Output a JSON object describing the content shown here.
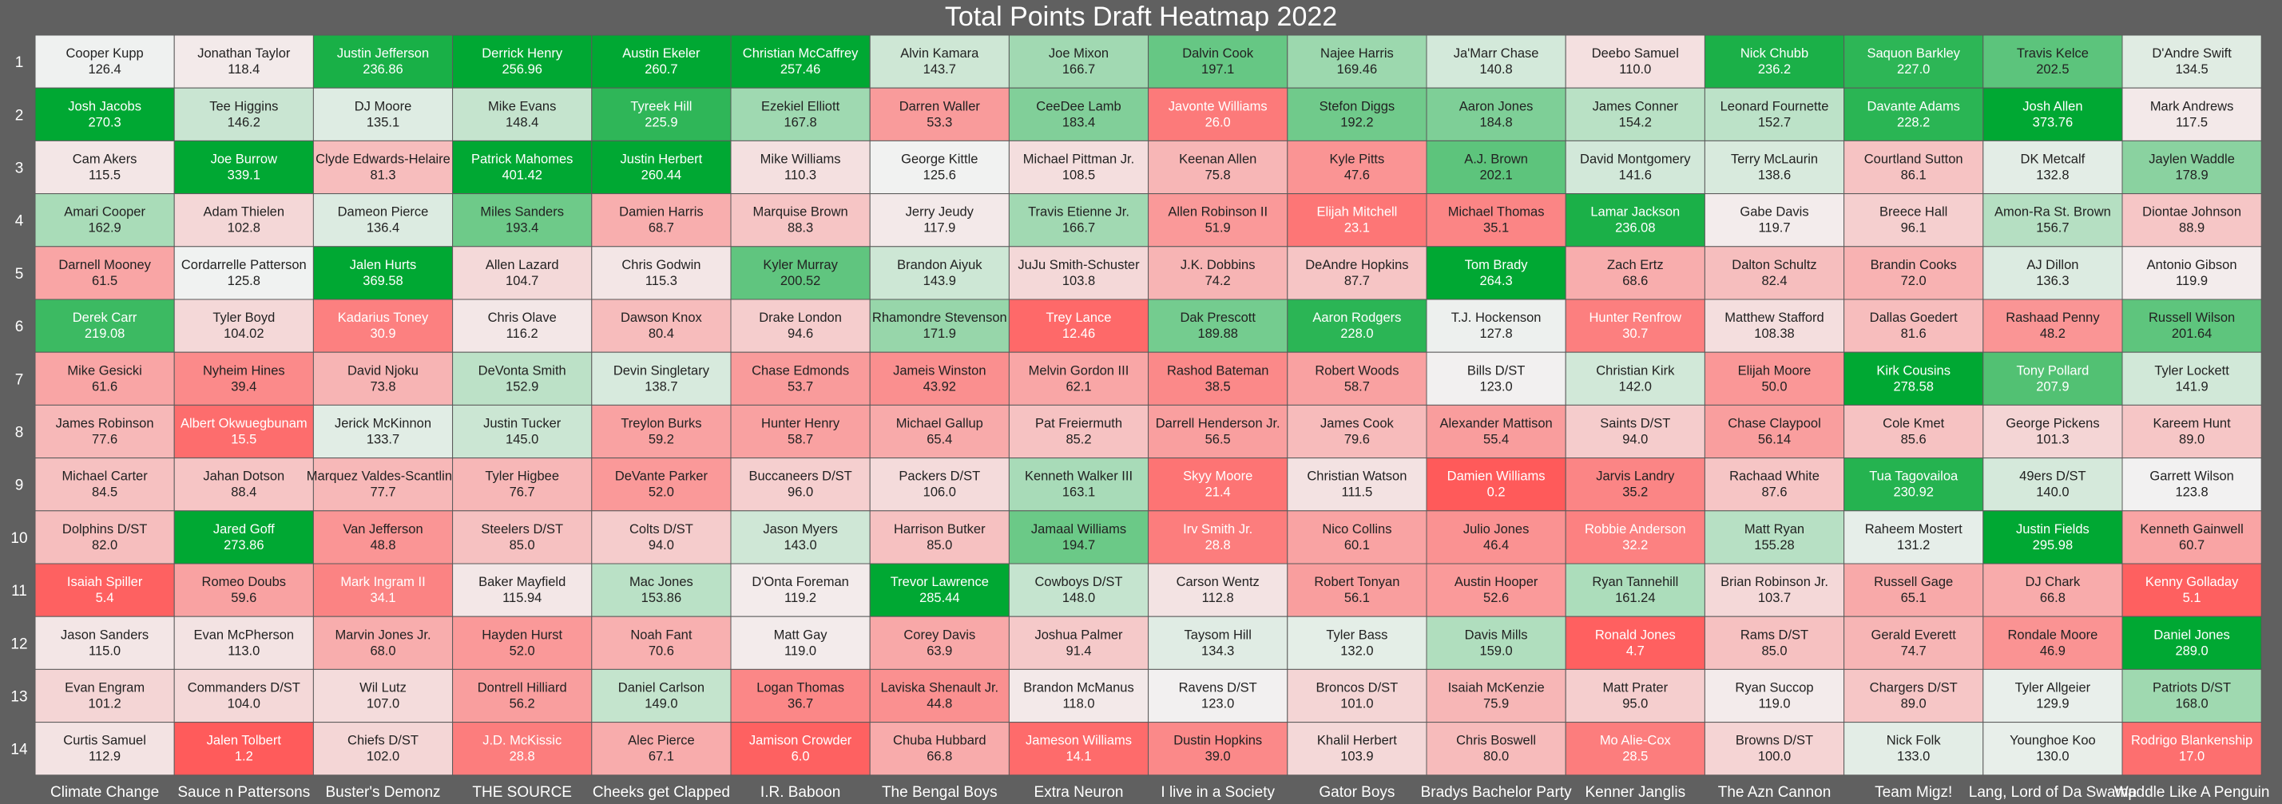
{
  "chart_data": {
    "type": "heatmap",
    "title": "Total Points Draft Heatmap 2022",
    "rounds": [
      "1",
      "2",
      "3",
      "4",
      "5",
      "6",
      "7",
      "8",
      "9",
      "10",
      "11",
      "12",
      "13",
      "14"
    ],
    "teams": [
      "Climate Change",
      "Sauce n Pattersons",
      "Buster's Demonz",
      "THE SOURCE",
      "Cheeks get  Clapped",
      "I.R. Baboon",
      "The Bengal  Boys",
      "Extra  Neuron",
      "I live in a Society",
      "Gator  Boys",
      "Bradys Bachelor Party",
      "Kenner Janglis",
      "The Azn Cannon",
      "Team Migz!",
      "Lang, Lord of Da Swamp",
      "Waddle Like A Penguin"
    ],
    "colors": {
      "low": "#ff5a5a",
      "mid": "#f2f2f2",
      "high": "#00a833",
      "background": "#606060"
    },
    "color_range": [
      0,
      250
    ],
    "cells": [
      [
        [
          "Cooper Kupp",
          "126.4"
        ],
        [
          "Jonathan Taylor",
          "118.4"
        ],
        [
          "Justin Jefferson",
          "236.86"
        ],
        [
          "Derrick Henry",
          "256.96"
        ],
        [
          "Austin Ekeler",
          "260.7"
        ],
        [
          "Christian McCaffrey",
          "257.46"
        ],
        [
          "Alvin Kamara",
          "143.7"
        ],
        [
          "Joe Mixon",
          "166.7"
        ],
        [
          "Dalvin Cook",
          "197.1"
        ],
        [
          "Najee Harris",
          "169.46"
        ],
        [
          "Ja'Marr Chase",
          "140.8"
        ],
        [
          "Deebo Samuel",
          "110.0"
        ],
        [
          "Nick Chubb",
          "236.2"
        ],
        [
          "Saquon Barkley",
          "227.0"
        ],
        [
          "Travis Kelce",
          "202.5"
        ],
        [
          "D'Andre Swift",
          "134.5"
        ]
      ],
      [
        [
          "Josh Jacobs",
          "270.3"
        ],
        [
          "Tee Higgins",
          "146.2"
        ],
        [
          "DJ Moore",
          "135.1"
        ],
        [
          "Mike Evans",
          "148.4"
        ],
        [
          "Tyreek Hill",
          "225.9"
        ],
        [
          "Ezekiel Elliott",
          "167.8"
        ],
        [
          "Darren Waller",
          "53.3"
        ],
        [
          "CeeDee Lamb",
          "183.4"
        ],
        [
          "Javonte Williams",
          "26.0"
        ],
        [
          "Stefon Diggs",
          "192.2"
        ],
        [
          "Aaron Jones",
          "184.8"
        ],
        [
          "James Conner",
          "154.2"
        ],
        [
          "Leonard Fournette",
          "152.7"
        ],
        [
          "Davante Adams",
          "228.2"
        ],
        [
          "Josh Allen",
          "373.76"
        ],
        [
          "Mark Andrews",
          "117.5"
        ]
      ],
      [
        [
          "Cam Akers",
          "115.5"
        ],
        [
          "Joe Burrow",
          "339.1"
        ],
        [
          "Clyde Edwards-Helaire",
          "81.3"
        ],
        [
          "Patrick Mahomes",
          "401.42"
        ],
        [
          "Justin Herbert",
          "260.44"
        ],
        [
          "Mike Williams",
          "110.3"
        ],
        [
          "George Kittle",
          "125.6"
        ],
        [
          "Michael Pittman Jr.",
          "108.5"
        ],
        [
          "Keenan Allen",
          "75.8"
        ],
        [
          "Kyle Pitts",
          "47.6"
        ],
        [
          "A.J. Brown",
          "202.1"
        ],
        [
          "David Montgomery",
          "141.6"
        ],
        [
          "Terry McLaurin",
          "138.6"
        ],
        [
          "Courtland Sutton",
          "86.1"
        ],
        [
          "DK Metcalf",
          "132.8"
        ],
        [
          "Jaylen Waddle",
          "178.9"
        ]
      ],
      [
        [
          "Amari Cooper",
          "162.9"
        ],
        [
          "Adam Thielen",
          "102.8"
        ],
        [
          "Dameon Pierce",
          "136.4"
        ],
        [
          "Miles Sanders",
          "193.4"
        ],
        [
          "Damien Harris",
          "68.7"
        ],
        [
          "Marquise Brown",
          "88.3"
        ],
        [
          "Jerry Jeudy",
          "117.9"
        ],
        [
          "Travis Etienne Jr.",
          "166.7"
        ],
        [
          "Allen Robinson II",
          "51.9"
        ],
        [
          "Elijah Mitchell",
          "23.1"
        ],
        [
          "Michael Thomas",
          "35.1"
        ],
        [
          "Lamar Jackson",
          "236.08"
        ],
        [
          "Gabe Davis",
          "119.7"
        ],
        [
          "Breece Hall",
          "96.1"
        ],
        [
          "Amon-Ra St. Brown",
          "156.7"
        ],
        [
          "Diontae Johnson",
          "88.9"
        ]
      ],
      [
        [
          "Darnell Mooney",
          "61.5"
        ],
        [
          "Cordarrelle Patterson",
          "125.8"
        ],
        [
          "Jalen Hurts",
          "369.58"
        ],
        [
          "Allen Lazard",
          "104.7"
        ],
        [
          "Chris Godwin",
          "115.3"
        ],
        [
          "Kyler Murray",
          "200.52"
        ],
        [
          "Brandon Aiyuk",
          "143.9"
        ],
        [
          "JuJu Smith-Schuster",
          "103.8"
        ],
        [
          "J.K. Dobbins",
          "74.2"
        ],
        [
          "DeAndre Hopkins",
          "87.7"
        ],
        [
          "Tom Brady",
          "264.3"
        ],
        [
          "Zach Ertz",
          "68.6"
        ],
        [
          "Dalton Schultz",
          "82.4"
        ],
        [
          "Brandin Cooks",
          "72.0"
        ],
        [
          "AJ Dillon",
          "136.3"
        ],
        [
          "Antonio Gibson",
          "119.9"
        ]
      ],
      [
        [
          "Derek Carr",
          "219.08"
        ],
        [
          "Tyler Boyd",
          "104.02"
        ],
        [
          "Kadarius Toney",
          "30.9"
        ],
        [
          "Chris Olave",
          "116.2"
        ],
        [
          "Dawson Knox",
          "80.4"
        ],
        [
          "Drake London",
          "94.6"
        ],
        [
          "Rhamondre Stevenson",
          "171.9"
        ],
        [
          "Trey Lance",
          "12.46"
        ],
        [
          "Dak Prescott",
          "189.88"
        ],
        [
          "Aaron Rodgers",
          "228.0"
        ],
        [
          "T.J. Hockenson",
          "127.8"
        ],
        [
          "Hunter Renfrow",
          "30.7"
        ],
        [
          "Matthew Stafford",
          "108.38"
        ],
        [
          "Dallas Goedert",
          "81.6"
        ],
        [
          "Rashaad Penny",
          "48.2"
        ],
        [
          "Russell Wilson",
          "201.64"
        ]
      ],
      [
        [
          "Mike Gesicki",
          "61.6"
        ],
        [
          "Nyheim Hines",
          "39.4"
        ],
        [
          "David Njoku",
          "73.8"
        ],
        [
          "DeVonta Smith",
          "152.9"
        ],
        [
          "Devin Singletary",
          "138.7"
        ],
        [
          "Chase Edmonds",
          "53.7"
        ],
        [
          "Jameis Winston",
          "43.92"
        ],
        [
          "Melvin Gordon III",
          "62.1"
        ],
        [
          "Rashod Bateman",
          "38.5"
        ],
        [
          "Robert Woods",
          "58.7"
        ],
        [
          "Bills D/ST",
          "123.0"
        ],
        [
          "Christian Kirk",
          "142.0"
        ],
        [
          "Elijah Moore",
          "50.0"
        ],
        [
          "Kirk Cousins",
          "278.58"
        ],
        [
          "Tony Pollard",
          "207.9"
        ],
        [
          "Tyler Lockett",
          "141.9"
        ]
      ],
      [
        [
          "James Robinson",
          "77.6"
        ],
        [
          "Albert Okwuegbunam",
          "15.5"
        ],
        [
          "Jerick McKinnon",
          "133.7"
        ],
        [
          "Justin Tucker",
          "145.0"
        ],
        [
          "Treylon Burks",
          "59.2"
        ],
        [
          "Hunter Henry",
          "58.7"
        ],
        [
          "Michael Gallup",
          "65.4"
        ],
        [
          "Pat Freiermuth",
          "85.2"
        ],
        [
          "Darrell Henderson Jr.",
          "56.5"
        ],
        [
          "James Cook",
          "79.6"
        ],
        [
          "Alexander Mattison",
          "55.4"
        ],
        [
          "Saints D/ST",
          "94.0"
        ],
        [
          "Chase Claypool",
          "56.14"
        ],
        [
          "Cole Kmet",
          "85.6"
        ],
        [
          "George Pickens",
          "101.3"
        ],
        [
          "Kareem Hunt",
          "89.0"
        ]
      ],
      [
        [
          "Michael Carter",
          "84.5"
        ],
        [
          "Jahan Dotson",
          "88.4"
        ],
        [
          "Marquez Valdes-Scantling",
          "77.7"
        ],
        [
          "Tyler Higbee",
          "76.7"
        ],
        [
          "DeVante Parker",
          "52.0"
        ],
        [
          "Buccaneers D/ST",
          "96.0"
        ],
        [
          "Packers D/ST",
          "106.0"
        ],
        [
          "Kenneth Walker III",
          "163.1"
        ],
        [
          "Skyy Moore",
          "21.4"
        ],
        [
          "Christian Watson",
          "111.5"
        ],
        [
          "Damien Williams",
          "0.2"
        ],
        [
          "Jarvis Landry",
          "35.2"
        ],
        [
          "Rachaad White",
          "87.6"
        ],
        [
          "Tua Tagovailoa",
          "230.92"
        ],
        [
          "49ers D/ST",
          "140.0"
        ],
        [
          "Garrett Wilson",
          "123.8"
        ]
      ],
      [
        [
          "Dolphins D/ST",
          "82.0"
        ],
        [
          "Jared Goff",
          "273.86"
        ],
        [
          "Van Jefferson",
          "48.8"
        ],
        [
          "Steelers D/ST",
          "85.0"
        ],
        [
          "Colts D/ST",
          "94.0"
        ],
        [
          "Jason Myers",
          "143.0"
        ],
        [
          "Harrison Butker",
          "85.0"
        ],
        [
          "Jamaal Williams",
          "194.7"
        ],
        [
          "Irv Smith Jr.",
          "28.8"
        ],
        [
          "Nico Collins",
          "60.1"
        ],
        [
          "Julio Jones",
          "46.4"
        ],
        [
          "Robbie Anderson",
          "32.2"
        ],
        [
          "Matt Ryan",
          "155.28"
        ],
        [
          "Raheem Mostert",
          "131.2"
        ],
        [
          "Justin Fields",
          "295.98"
        ],
        [
          "Kenneth Gainwell",
          "60.7"
        ]
      ],
      [
        [
          "Isaiah Spiller",
          "5.4"
        ],
        [
          "Romeo Doubs",
          "59.6"
        ],
        [
          "Mark Ingram II",
          "34.1"
        ],
        [
          "Baker Mayfield",
          "115.94"
        ],
        [
          "Mac Jones",
          "153.86"
        ],
        [
          "D'Onta Foreman",
          "119.2"
        ],
        [
          "Trevor Lawrence",
          "285.44"
        ],
        [
          "Cowboys D/ST",
          "148.0"
        ],
        [
          "Carson Wentz",
          "112.8"
        ],
        [
          "Robert Tonyan",
          "56.1"
        ],
        [
          "Austin Hooper",
          "52.6"
        ],
        [
          "Ryan Tannehill",
          "161.24"
        ],
        [
          "Brian Robinson Jr.",
          "103.7"
        ],
        [
          "Russell Gage",
          "65.1"
        ],
        [
          "DJ Chark",
          "66.8"
        ],
        [
          "Kenny Golladay",
          "5.1"
        ]
      ],
      [
        [
          "Jason Sanders",
          "115.0"
        ],
        [
          "Evan McPherson",
          "113.0"
        ],
        [
          "Marvin Jones Jr.",
          "68.0"
        ],
        [
          "Hayden Hurst",
          "52.0"
        ],
        [
          "Noah Fant",
          "70.6"
        ],
        [
          "Matt Gay",
          "119.0"
        ],
        [
          "Corey Davis",
          "63.9"
        ],
        [
          "Joshua Palmer",
          "91.4"
        ],
        [
          "Taysom Hill",
          "134.3"
        ],
        [
          "Tyler Bass",
          "132.0"
        ],
        [
          "Davis Mills",
          "159.0"
        ],
        [
          "Ronald Jones",
          "4.7"
        ],
        [
          "Rams D/ST",
          "85.0"
        ],
        [
          "Gerald Everett",
          "74.7"
        ],
        [
          "Rondale Moore",
          "46.9"
        ],
        [
          "Daniel Jones",
          "289.0"
        ]
      ],
      [
        [
          "Evan Engram",
          "101.2"
        ],
        [
          "Commanders D/ST",
          "104.0"
        ],
        [
          "Wil Lutz",
          "107.0"
        ],
        [
          "Dontrell Hilliard",
          "56.2"
        ],
        [
          "Daniel Carlson",
          "149.0"
        ],
        [
          "Logan Thomas",
          "36.7"
        ],
        [
          "Laviska Shenault Jr.",
          "44.8"
        ],
        [
          "Brandon McManus",
          "118.0"
        ],
        [
          "Ravens D/ST",
          "123.0"
        ],
        [
          "Broncos D/ST",
          "101.0"
        ],
        [
          "Isaiah McKenzie",
          "75.9"
        ],
        [
          "Matt Prater",
          "95.0"
        ],
        [
          "Ryan Succop",
          "119.0"
        ],
        [
          "Chargers D/ST",
          "89.0"
        ],
        [
          "Tyler Allgeier",
          "129.9"
        ],
        [
          "Patriots D/ST",
          "168.0"
        ]
      ],
      [
        [
          "Curtis Samuel",
          "112.9"
        ],
        [
          "Jalen Tolbert",
          "1.2"
        ],
        [
          "Chiefs D/ST",
          "102.0"
        ],
        [
          "J.D. McKissic",
          "28.8"
        ],
        [
          "Alec Pierce",
          "67.1"
        ],
        [
          "Jamison Crowder",
          "6.0"
        ],
        [
          "Chuba Hubbard",
          "66.8"
        ],
        [
          "Jameson Williams",
          "14.1"
        ],
        [
          "Dustin Hopkins",
          "39.0"
        ],
        [
          "Khalil Herbert",
          "103.9"
        ],
        [
          "Chris Boswell",
          "80.0"
        ],
        [
          "Mo Alie-Cox",
          "28.5"
        ],
        [
          "Browns D/ST",
          "100.0"
        ],
        [
          "Nick Folk",
          "133.0"
        ],
        [
          "Younghoe Koo",
          "130.0"
        ],
        [
          "Rodrigo Blankenship",
          "17.0"
        ]
      ]
    ]
  }
}
